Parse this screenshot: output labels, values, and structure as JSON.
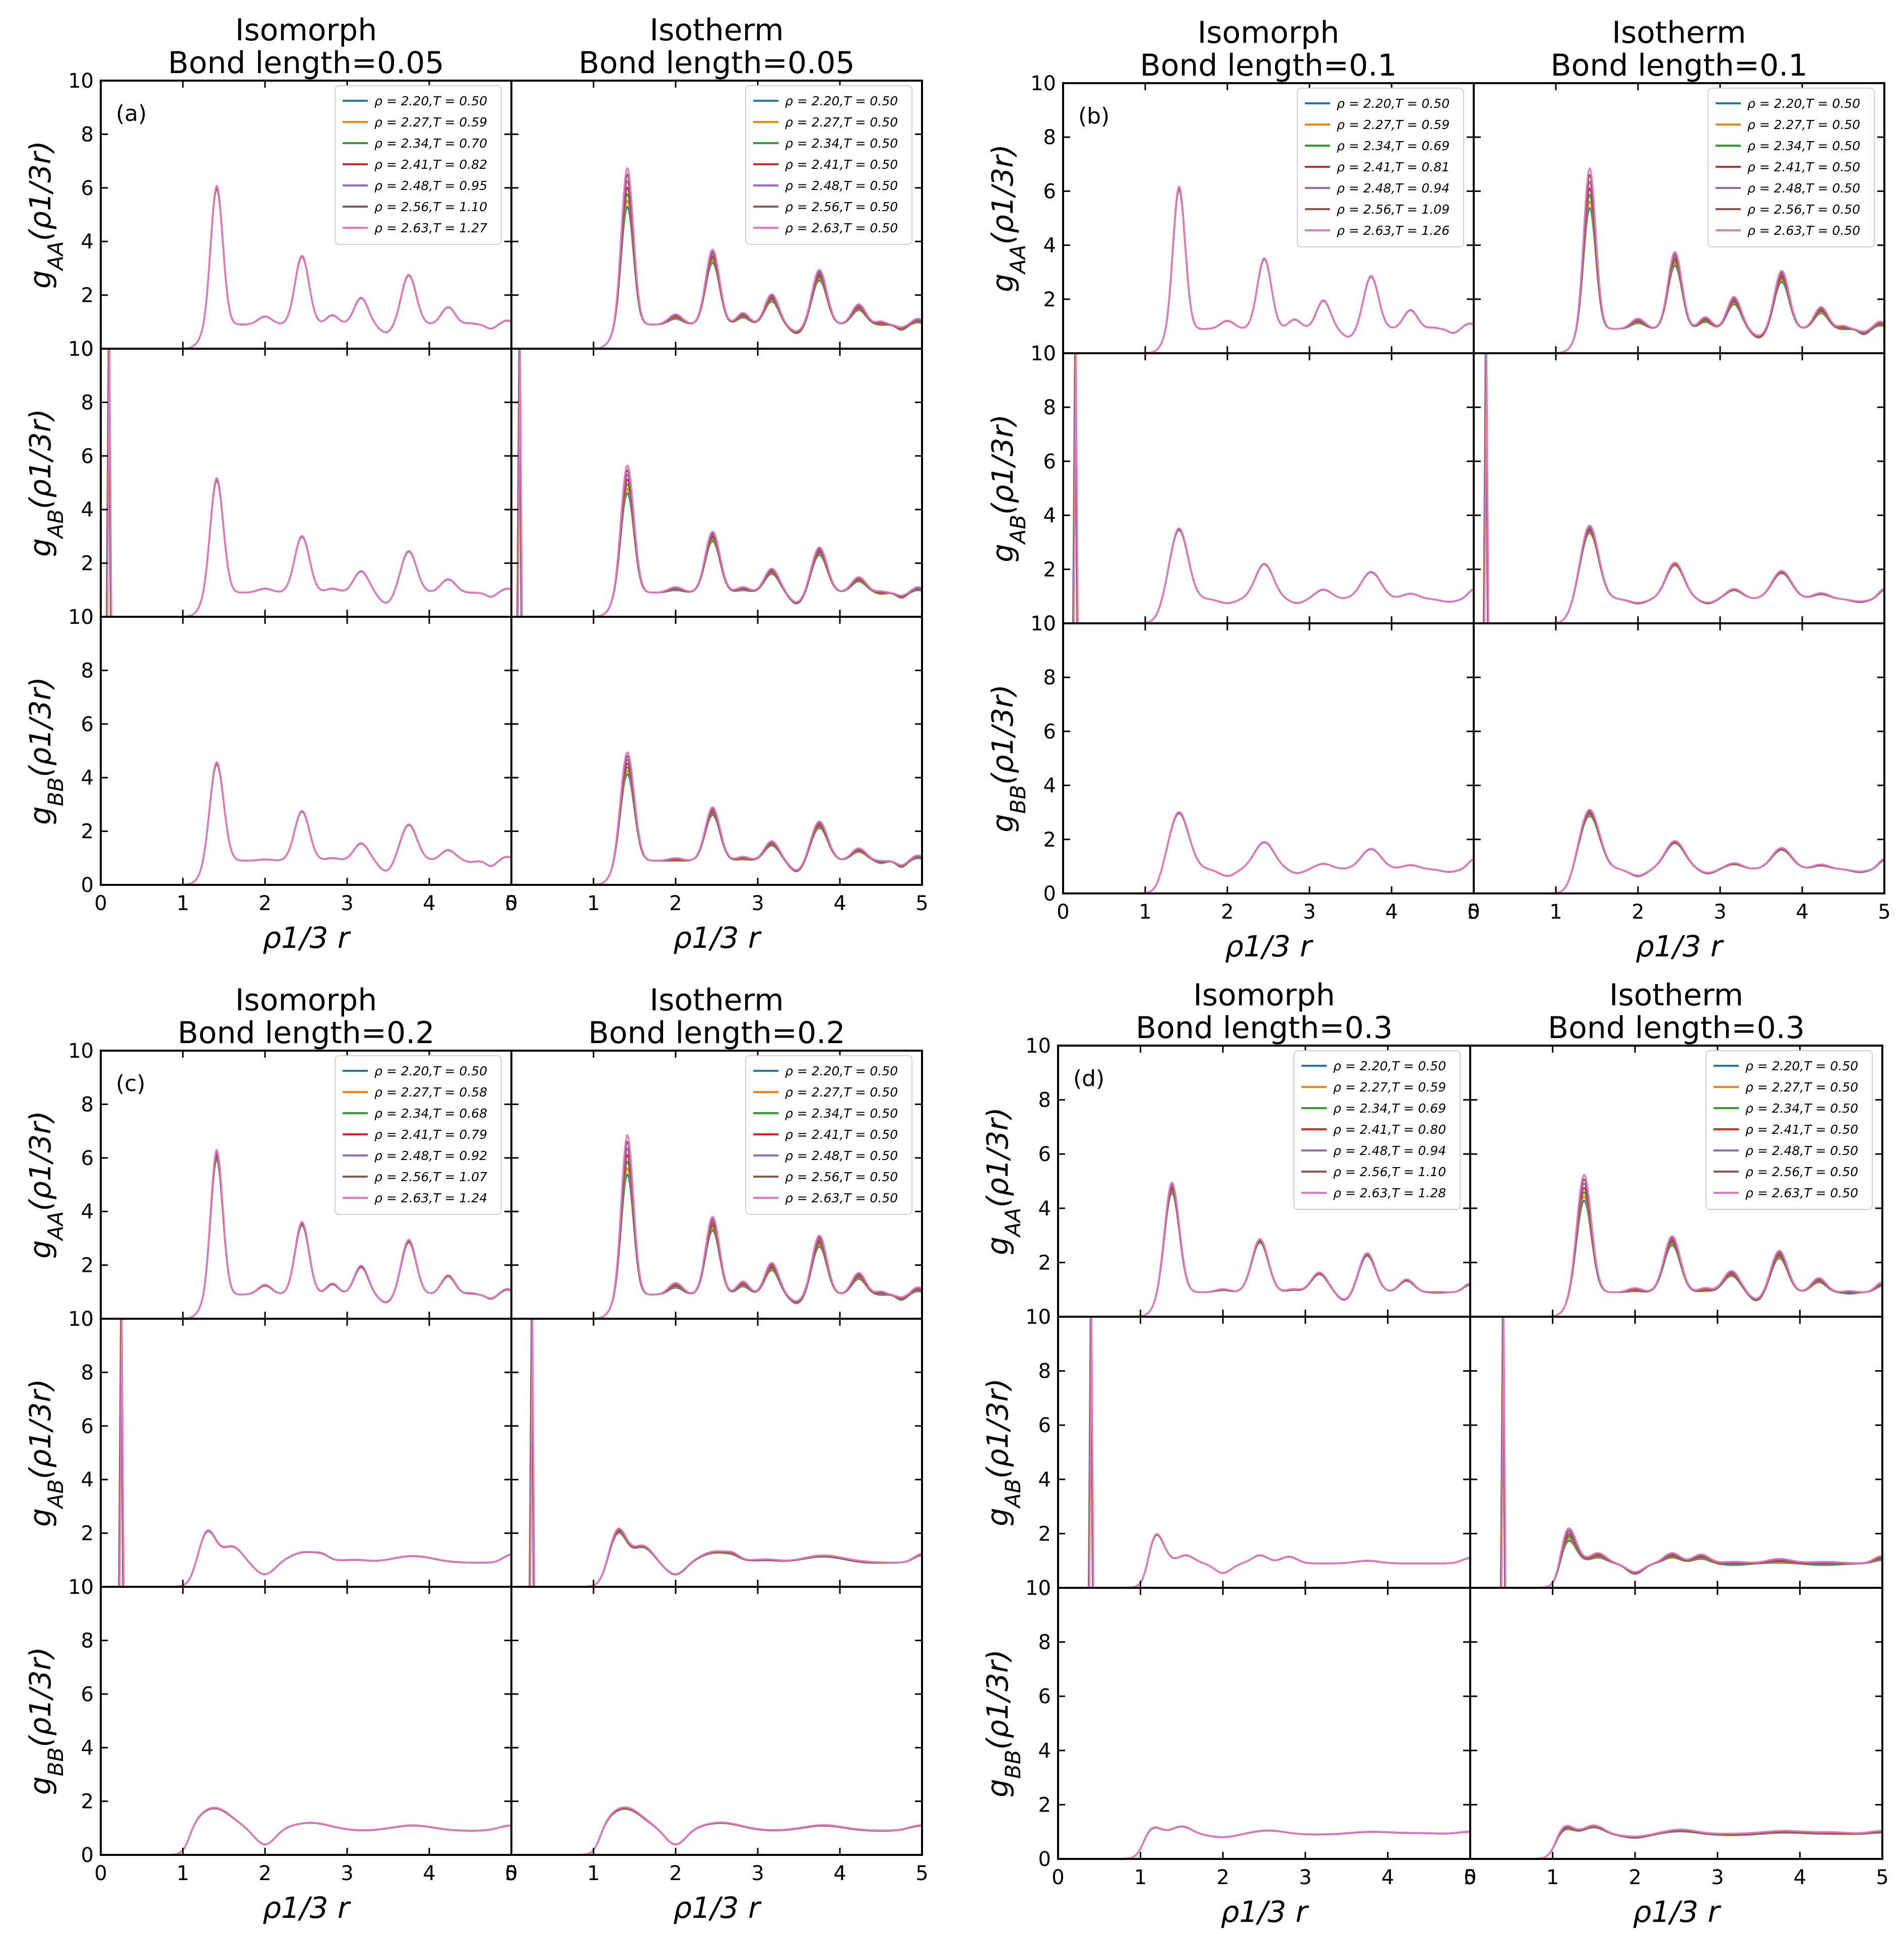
{
  "colors": {
    "series": [
      "#1f77b4",
      "#ff7f0e",
      "#2ca02c",
      "#d62728",
      "#9467bd",
      "#8c564b",
      "#e377c2"
    ],
    "axis": "#000000",
    "background": "#ffffff"
  },
  "chart_data": [
    {
      "type": "line",
      "panel_label": "(a)",
      "bond_length": 0.05,
      "xlabel": "ρ1/3 r",
      "xlim": [
        0,
        5
      ],
      "ylim": [
        0,
        10
      ],
      "x_ticks": [
        "0",
        "1",
        "2",
        "3",
        "4",
        "5"
      ],
      "y_ticks": [
        "0",
        "2",
        "4",
        "6",
        "8",
        "10"
      ],
      "columns": [
        {
          "title_line1": "Isomorph",
          "title_line2": "Bond length=0.05",
          "legend": [
            "ρ = 2.20,T = 0.50",
            "ρ = 2.27,T = 0.59",
            "ρ = 2.34,T = 0.70",
            "ρ = 2.41,T = 0.82",
            "ρ = 2.48,T = 0.95",
            "ρ = 2.56,T = 1.10",
            "ρ = 2.63,T = 1.27"
          ]
        },
        {
          "title_line1": "Isotherm",
          "title_line2": "Bond length=0.05",
          "legend": [
            "ρ = 2.20,T = 0.50",
            "ρ = 2.27,T = 0.50",
            "ρ = 2.34,T = 0.50",
            "ρ = 2.41,T = 0.50",
            "ρ = 2.48,T = 0.50",
            "ρ = 2.56,T = 0.50",
            "ρ = 2.63,T = 0.50"
          ]
        }
      ],
      "rows": [
        {
          "ylabel_base": "g",
          "ylabel_sub": "AA",
          "ylabel_arg": "(ρ1/3r)",
          "peaks": [
            [
              1.41,
              6.1,
              0.075
            ],
            [
              2.0,
              1.2,
              0.085
            ],
            [
              2.45,
              3.45,
              0.085
            ],
            [
              2.82,
              1.25,
              0.075
            ],
            [
              3.17,
              1.9,
              0.085
            ],
            [
              3.48,
              0.6,
              0.09
            ],
            [
              3.75,
              2.75,
              0.09
            ],
            [
              4.23,
              1.55,
              0.085
            ],
            [
              4.5,
              0.95,
              0.06
            ],
            [
              4.75,
              0.75,
              0.06
            ],
            [
              4.95,
              1.05,
              0.07
            ]
          ],
          "start": 1.1,
          "spike": null,
          "iso_spread": 0.01,
          "spread": 0.12
        },
        {
          "ylabel_base": "g",
          "ylabel_sub": "AB",
          "ylabel_arg": "(ρ1/3r)",
          "peaks": [
            [
              1.41,
              5.2,
              0.08
            ],
            [
              2.0,
              1.05,
              0.09
            ],
            [
              2.45,
              3.0,
              0.09
            ],
            [
              2.82,
              1.05,
              0.08
            ],
            [
              3.17,
              1.7,
              0.09
            ],
            [
              3.48,
              0.5,
              0.09
            ],
            [
              3.75,
              2.45,
              0.095
            ],
            [
              4.23,
              1.4,
              0.09
            ],
            [
              4.5,
              0.9,
              0.06
            ],
            [
              4.75,
              0.75,
              0.06
            ],
            [
              4.95,
              1.05,
              0.07
            ]
          ],
          "start": 1.1,
          "spike": 0.1,
          "iso_spread": 0.01,
          "spread": 0.1
        },
        {
          "ylabel_base": "g",
          "ylabel_sub": "BB",
          "ylabel_arg": "(ρ1/3r)",
          "peaks": [
            [
              1.41,
              4.6,
              0.085
            ],
            [
              2.0,
              0.95,
              0.09
            ],
            [
              2.45,
              2.75,
              0.09
            ],
            [
              2.82,
              1.0,
              0.08
            ],
            [
              3.17,
              1.55,
              0.09
            ],
            [
              3.48,
              0.5,
              0.09
            ],
            [
              3.75,
              2.25,
              0.1
            ],
            [
              4.23,
              1.3,
              0.09
            ],
            [
              4.5,
              0.85,
              0.06
            ],
            [
              4.75,
              0.7,
              0.06
            ],
            [
              4.95,
              1.05,
              0.07
            ]
          ],
          "start": 1.1,
          "spike": null,
          "iso_spread": 0.01,
          "spread": 0.09
        }
      ]
    },
    {
      "type": "line",
      "panel_label": "(b)",
      "bond_length": 0.1,
      "xlabel": "ρ1/3 r",
      "xlim": [
        0,
        5
      ],
      "ylim": [
        0,
        10
      ],
      "x_ticks": [
        "0",
        "1",
        "2",
        "3",
        "4",
        "5"
      ],
      "y_ticks": [
        "0",
        "2",
        "4",
        "6",
        "8",
        "10"
      ],
      "columns": [
        {
          "title_line1": "Isomorph",
          "title_line2": "Bond length=0.1",
          "legend": [
            "ρ = 2.20,T = 0.50",
            "ρ = 2.27,T = 0.59",
            "ρ = 2.34,T = 0.69",
            "ρ = 2.41,T = 0.81",
            "ρ = 2.48,T = 0.94",
            "ρ = 2.56,T = 1.09",
            "ρ = 2.63,T = 1.26"
          ]
        },
        {
          "title_line1": "Isotherm",
          "title_line2": "Bond length=0.1",
          "legend": [
            "ρ = 2.20,T = 0.50",
            "ρ = 2.27,T = 0.50",
            "ρ = 2.34,T = 0.50",
            "ρ = 2.41,T = 0.50",
            "ρ = 2.48,T = 0.50",
            "ρ = 2.56,T = 0.50",
            "ρ = 2.63,T = 0.50"
          ]
        }
      ],
      "rows": [
        {
          "ylabel_base": "g",
          "ylabel_sub": "AA",
          "ylabel_arg": "(ρ1/3r)",
          "peaks": [
            [
              1.41,
              6.2,
              0.075
            ],
            [
              2.0,
              1.2,
              0.085
            ],
            [
              2.45,
              3.5,
              0.085
            ],
            [
              2.82,
              1.25,
              0.075
            ],
            [
              3.17,
              1.95,
              0.085
            ],
            [
              3.48,
              0.6,
              0.09
            ],
            [
              3.75,
              2.85,
              0.09
            ],
            [
              4.23,
              1.6,
              0.085
            ],
            [
              4.5,
              0.95,
              0.06
            ],
            [
              4.75,
              0.75,
              0.06
            ],
            [
              4.95,
              1.1,
              0.07
            ]
          ],
          "start": 1.1,
          "spike": null,
          "iso_spread": 0.01,
          "spread": 0.12
        },
        {
          "ylabel_base": "g",
          "ylabel_sub": "AB",
          "ylabel_arg": "(ρ1/3r)",
          "peaks": [
            [
              1.41,
              3.5,
              0.11
            ],
            [
              2.0,
              0.75,
              0.1
            ],
            [
              2.45,
              2.2,
              0.11
            ],
            [
              2.85,
              0.75,
              0.09
            ],
            [
              3.17,
              1.25,
              0.1
            ],
            [
              3.75,
              1.9,
              0.12
            ],
            [
              4.23,
              1.1,
              0.1
            ],
            [
              4.7,
              0.8,
              0.1
            ],
            [
              5.0,
              1.25,
              0.07
            ]
          ],
          "start": 1.05,
          "spike": 0.15,
          "iso_spread": 0.01,
          "spread": 0.04
        },
        {
          "ylabel_base": "g",
          "ylabel_sub": "BB",
          "ylabel_arg": "(ρ1/3r)",
          "peaks": [
            [
              1.41,
              3.0,
              0.12
            ],
            [
              2.0,
              0.65,
              0.1
            ],
            [
              2.45,
              1.9,
              0.12
            ],
            [
              2.85,
              0.75,
              0.09
            ],
            [
              3.17,
              1.1,
              0.1
            ],
            [
              3.75,
              1.65,
              0.12
            ],
            [
              4.23,
              1.05,
              0.1
            ],
            [
              4.7,
              0.8,
              0.1
            ],
            [
              5.0,
              1.25,
              0.07
            ]
          ],
          "start": 1.05,
          "spike": null,
          "iso_spread": 0.01,
          "spread": 0.04
        }
      ]
    },
    {
      "type": "line",
      "panel_label": "(c)",
      "bond_length": 0.2,
      "xlabel": "ρ1/3 r",
      "xlim": [
        0,
        5
      ],
      "ylim": [
        0,
        10
      ],
      "x_ticks": [
        "0",
        "1",
        "2",
        "3",
        "4",
        "5"
      ],
      "y_ticks": [
        "0",
        "2",
        "4",
        "6",
        "8",
        "10"
      ],
      "columns": [
        {
          "title_line1": "Isomorph",
          "title_line2": "Bond length=0.2",
          "legend": [
            "ρ = 2.20,T = 0.50",
            "ρ = 2.27,T = 0.58",
            "ρ = 2.34,T = 0.68",
            "ρ = 2.41,T = 0.79",
            "ρ = 2.48,T = 0.92",
            "ρ = 2.56,T = 1.07",
            "ρ = 2.63,T = 1.24"
          ]
        },
        {
          "title_line1": "Isotherm",
          "title_line2": "Bond length=0.2",
          "legend": [
            "ρ = 2.20,T = 0.50",
            "ρ = 2.27,T = 0.50",
            "ρ = 2.34,T = 0.50",
            "ρ = 2.41,T = 0.50",
            "ρ = 2.48,T = 0.50",
            "ρ = 2.56,T = 0.50",
            "ρ = 2.63,T = 0.50"
          ]
        }
      ],
      "rows": [
        {
          "ylabel_base": "g",
          "ylabel_sub": "AA",
          "ylabel_arg": "(ρ1/3r)",
          "peaks": [
            [
              1.41,
              6.2,
              0.075
            ],
            [
              2.0,
              1.25,
              0.085
            ],
            [
              2.45,
              3.55,
              0.085
            ],
            [
              2.82,
              1.3,
              0.075
            ],
            [
              3.17,
              1.95,
              0.085
            ],
            [
              3.48,
              0.6,
              0.09
            ],
            [
              3.75,
              2.9,
              0.09
            ],
            [
              4.23,
              1.6,
              0.085
            ],
            [
              4.5,
              0.95,
              0.06
            ],
            [
              4.75,
              0.75,
              0.06
            ],
            [
              4.95,
              1.1,
              0.07
            ]
          ],
          "start": 1.1,
          "spike": null,
          "iso_spread": 0.03,
          "spread": 0.12
        },
        {
          "ylabel_base": "g",
          "ylabel_sub": "AB",
          "ylabel_arg": "(ρ1/3r)",
          "peaks": [
            [
              1.3,
              2.1,
              0.1
            ],
            [
              1.6,
              1.5,
              0.12
            ],
            [
              2.0,
              0.45,
              0.12
            ],
            [
              2.5,
              1.3,
              0.2
            ],
            [
              2.7,
              1.0,
              0.07
            ],
            [
              3.1,
              1.0,
              0.15
            ],
            [
              3.8,
              1.15,
              0.25
            ],
            [
              4.3,
              0.9,
              0.2
            ],
            [
              5.0,
              1.2,
              0.1
            ]
          ],
          "start": 1.0,
          "spike": 0.25,
          "iso_spread": 0.01,
          "spread": 0.04
        },
        {
          "ylabel_base": "g",
          "ylabel_sub": "BB",
          "ylabel_arg": "(ρ1/3r)",
          "peaks": [
            [
              1.38,
              1.75,
              0.22
            ],
            [
              2.0,
              0.35,
              0.12
            ],
            [
              2.55,
              1.2,
              0.25
            ],
            [
              3.2,
              0.9,
              0.25
            ],
            [
              3.8,
              1.1,
              0.25
            ],
            [
              4.4,
              0.9,
              0.25
            ],
            [
              5.0,
              1.1,
              0.15
            ]
          ],
          "start": 0.95,
          "spike": null,
          "iso_spread": 0.01,
          "spread": 0.02
        }
      ]
    },
    {
      "type": "line",
      "panel_label": "(d)",
      "bond_length": 0.3,
      "xlabel": "ρ1/3 r",
      "xlim": [
        0,
        5
      ],
      "ylim": [
        0,
        10
      ],
      "x_ticks": [
        "0",
        "1",
        "2",
        "3",
        "4",
        "5"
      ],
      "y_ticks": [
        "0",
        "2",
        "4",
        "6",
        "8",
        "10"
      ],
      "columns": [
        {
          "title_line1": "Isomorph",
          "title_line2": "Bond length=0.3",
          "legend": [
            "ρ = 2.20,T = 0.50",
            "ρ = 2.27,T = 0.59",
            "ρ = 2.34,T = 0.69",
            "ρ = 2.41,T = 0.80",
            "ρ = 2.48,T = 0.94",
            "ρ = 2.56,T = 1.10",
            "ρ = 2.63,T = 1.28"
          ]
        },
        {
          "title_line1": "Isotherm",
          "title_line2": "Bond length=0.3",
          "legend": [
            "ρ = 2.20,T = 0.50",
            "ρ = 2.27,T = 0.50",
            "ρ = 2.34,T = 0.50",
            "ρ = 2.41,T = 0.50",
            "ρ = 2.48,T = 0.50",
            "ρ = 2.56,T = 0.50",
            "ρ = 2.63,T = 0.50"
          ]
        }
      ],
      "rows": [
        {
          "ylabel_base": "g",
          "ylabel_sub": "AA",
          "ylabel_arg": "(ρ1/3r)",
          "peaks": [
            [
              1.38,
              4.8,
              0.09
            ],
            [
              2.0,
              1.0,
              0.09
            ],
            [
              2.45,
              2.8,
              0.1
            ],
            [
              2.85,
              1.0,
              0.08
            ],
            [
              3.17,
              1.6,
              0.1
            ],
            [
              3.48,
              0.6,
              0.09
            ],
            [
              3.75,
              2.3,
              0.1
            ],
            [
              4.23,
              1.35,
              0.09
            ],
            [
              4.6,
              0.9,
              0.08
            ],
            [
              5.0,
              1.2,
              0.08
            ]
          ],
          "start": 1.05,
          "spike": null,
          "iso_spread": 0.04,
          "spread": 0.1
        },
        {
          "ylabel_base": "g",
          "ylabel_sub": "AB",
          "ylabel_arg": "(ρ1/3r)",
          "peaks": [
            [
              1.18,
              2.1,
              0.1
            ],
            [
              1.55,
              1.2,
              0.1
            ],
            [
              2.0,
              0.55,
              0.1
            ],
            [
              2.45,
              1.2,
              0.1
            ],
            [
              2.8,
              1.15,
              0.1
            ],
            [
              3.2,
              0.9,
              0.15
            ],
            [
              3.75,
              1.0,
              0.15
            ],
            [
              4.3,
              0.9,
              0.2
            ],
            [
              5.0,
              1.1,
              0.1
            ]
          ],
          "start": 0.95,
          "spike": 0.4,
          "iso_spread": 0.01,
          "spread": 0.12
        },
        {
          "ylabel_base": "g",
          "ylabel_sub": "BB",
          "ylabel_arg": "(ρ1/3r)",
          "peaks": [
            [
              1.15,
              1.2,
              0.1
            ],
            [
              1.5,
              1.2,
              0.12
            ],
            [
              2.0,
              0.8,
              0.15
            ],
            [
              2.55,
              1.05,
              0.2
            ],
            [
              3.2,
              0.9,
              0.25
            ],
            [
              3.8,
              1.0,
              0.25
            ],
            [
              4.4,
              0.95,
              0.25
            ],
            [
              5.0,
              1.0,
              0.15
            ]
          ],
          "start": 0.9,
          "spike": null,
          "iso_spread": 0.01,
          "spread": 0.06
        }
      ]
    }
  ]
}
